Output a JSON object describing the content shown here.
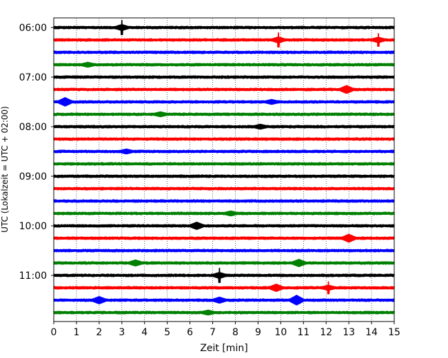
{
  "chart_data": {
    "type": "line",
    "title": "",
    "xlabel": "Zeit  [min]",
    "ylabel": "UTC (Lokalzeit = UTC + 02:00)",
    "xlim": [
      0,
      15
    ],
    "x_ticks": [
      "0",
      "1",
      "2",
      "3",
      "4",
      "5",
      "6",
      "7",
      "8",
      "9",
      "10",
      "11",
      "12",
      "13",
      "14",
      "15"
    ],
    "y_ticks": [
      "06:00",
      "07:00",
      "08:00",
      "09:00",
      "10:00",
      "11:00"
    ],
    "vertical_grid": "dotted",
    "trace_colors": [
      "#000000",
      "#ff0000",
      "#0000ff",
      "#008000"
    ],
    "traces": [
      {
        "hour_offset": 0.0,
        "events": [
          {
            "t": 3.0,
            "amp": 1.0
          }
        ]
      },
      {
        "hour_offset": 0.25,
        "events": [
          {
            "t": 9.9,
            "amp": 1.0
          },
          {
            "t": 14.3,
            "amp": 0.9
          }
        ]
      },
      {
        "hour_offset": 0.5,
        "events": []
      },
      {
        "hour_offset": 0.75,
        "events": [
          {
            "t": 1.5,
            "amp": 0.3
          }
        ]
      },
      {
        "hour_offset": 1.0,
        "events": []
      },
      {
        "hour_offset": 1.25,
        "events": [
          {
            "t": 12.9,
            "amp": 0.55
          }
        ]
      },
      {
        "hour_offset": 1.5,
        "events": [
          {
            "t": 0.5,
            "amp": 0.6
          },
          {
            "t": 9.6,
            "amp": 0.3
          }
        ]
      },
      {
        "hour_offset": 1.75,
        "events": [
          {
            "t": 4.7,
            "amp": 0.3
          }
        ]
      },
      {
        "hour_offset": 2.0,
        "events": [
          {
            "t": 9.1,
            "amp": 0.3
          }
        ]
      },
      {
        "hour_offset": 2.25,
        "events": []
      },
      {
        "hour_offset": 2.5,
        "events": [
          {
            "t": 3.2,
            "amp": 0.3
          }
        ]
      },
      {
        "hour_offset": 2.75,
        "events": []
      },
      {
        "hour_offset": 3.0,
        "events": []
      },
      {
        "hour_offset": 3.25,
        "events": []
      },
      {
        "hour_offset": 3.5,
        "events": []
      },
      {
        "hour_offset": 3.75,
        "events": [
          {
            "t": 7.8,
            "amp": 0.3
          }
        ]
      },
      {
        "hour_offset": 4.0,
        "events": [
          {
            "t": 6.3,
            "amp": 0.5
          }
        ]
      },
      {
        "hour_offset": 4.25,
        "events": [
          {
            "t": 13.0,
            "amp": 0.55
          }
        ]
      },
      {
        "hour_offset": 4.5,
        "events": []
      },
      {
        "hour_offset": 4.75,
        "events": [
          {
            "t": 3.6,
            "amp": 0.4
          },
          {
            "t": 10.8,
            "amp": 0.5
          }
        ]
      },
      {
        "hour_offset": 5.0,
        "events": [
          {
            "t": 7.3,
            "amp": 1.0
          }
        ]
      },
      {
        "hour_offset": 5.25,
        "events": [
          {
            "t": 9.8,
            "amp": 0.5
          },
          {
            "t": 12.1,
            "amp": 0.85
          }
        ]
      },
      {
        "hour_offset": 5.5,
        "events": [
          {
            "t": 2.0,
            "amp": 0.5
          },
          {
            "t": 7.3,
            "amp": 0.4
          },
          {
            "t": 10.7,
            "amp": 0.7
          }
        ]
      },
      {
        "hour_offset": 5.75,
        "events": [
          {
            "t": 6.8,
            "amp": 0.3
          }
        ]
      }
    ]
  }
}
